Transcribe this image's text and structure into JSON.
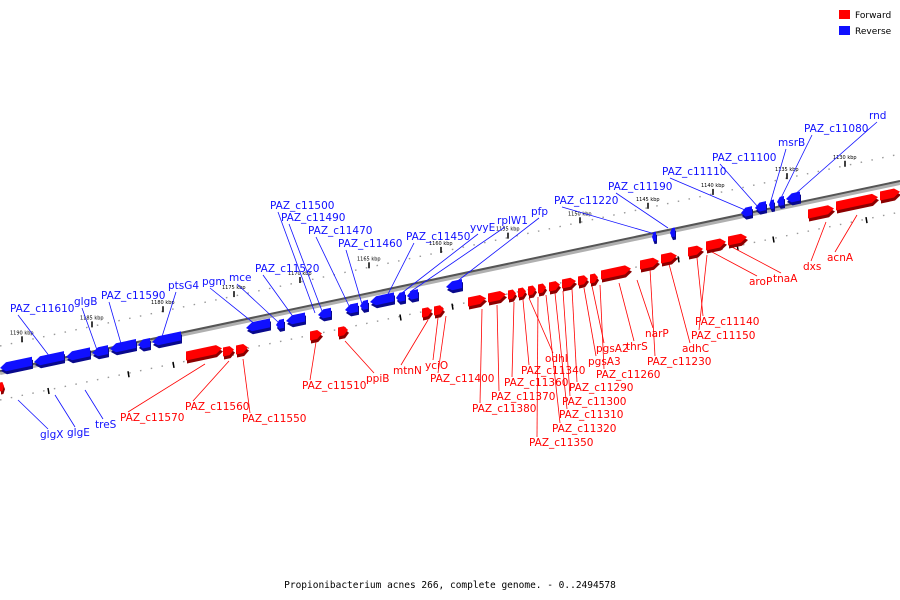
{
  "caption": "Propionibacterium acnes 266, complete genome. - 0..2494578",
  "legend": {
    "forward_label": "Forward",
    "reverse_label": "Reverse",
    "forward_color": "#ff0000",
    "reverse_color": "#1010ff"
  },
  "tick_labels": [
    "1130 kbp",
    "1135 kbp",
    "1140 kbp",
    "1145 kbp",
    "1150 kbp",
    "1155 kbp",
    "1160 kbp",
    "1165 kbp",
    "1170 kbp",
    "1175 kbp",
    "1180 kbp",
    "1185 kbp",
    "1190 kbp"
  ],
  "reverse_genes": [
    "rnd",
    "PAZ_c11080",
    "msrB",
    "PAZ_c11100",
    "PAZ_c11110",
    "PAZ_c11190",
    "PAZ_c11220",
    "pfp",
    "rplW1",
    "yvyE",
    "PAZ_c11450",
    "PAZ_c11460",
    "PAZ_c11470",
    "PAZ_c11490",
    "PAZ_c11500",
    "PAZ_c11520",
    "mce",
    "pgm",
    "ptsG4",
    "PAZ_c11590",
    "glgB",
    "PAZ_c11610",
    "glgX",
    "glgE",
    "treS"
  ],
  "forward_genes": [
    "acnA",
    "dxs",
    "tnaA",
    "aroP",
    "PAZ_c11140",
    "PAZ_c11150",
    "adhC",
    "PAZ_c11230",
    "narP",
    "thrS",
    "PAZ_c11260",
    "pgsA2",
    "pgsA3",
    "PAZ_c11290",
    "PAZ_c11300",
    "PAZ_c11310",
    "PAZ_c11320",
    "PAZ_c11350",
    "odhI",
    "PAZ_c11340",
    "PAZ_c11360",
    "PAZ_c11370",
    "PAZ_c11380",
    "PAZ_c11400",
    "yciO",
    "mtnN",
    "ppiB",
    "PAZ_c11510",
    "PAZ_c11550",
    "PAZ_c11560",
    "PAZ_c11570"
  ]
}
